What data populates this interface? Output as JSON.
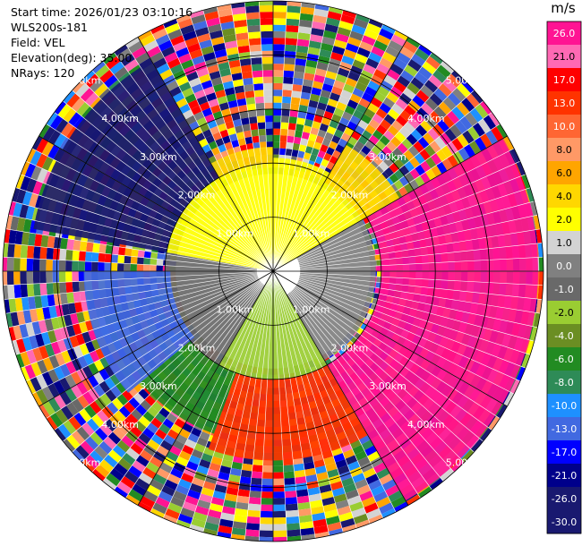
{
  "header": {
    "start_time": "Start time: 2026/01/23 03:10:16",
    "instrument": "WLS200s-181",
    "field": "Field: VEL",
    "elevation": "Elevation(deg): 35.00",
    "nrays": "NRays: 120"
  },
  "chart_data": {
    "type": "ppi",
    "title": "",
    "field": "VEL",
    "elevation_deg": 35.0,
    "n_rays": 120,
    "max_range_km": 5.0,
    "range_rings_km": [
      1,
      2,
      3,
      4,
      5
    ],
    "ring_labels": [
      "1.00km",
      "2.00km",
      "3.00km",
      "4.00km",
      "5.00km"
    ],
    "azimuth_spokes_deg": [
      0,
      30,
      60,
      90,
      120,
      150,
      180,
      210,
      240,
      270,
      300,
      330
    ],
    "colorbar": {
      "unit": "m/s",
      "levels": [
        "26.0",
        "21.0",
        "17.0",
        "13.0",
        "10.0",
        "8.0",
        "6.0",
        "4.0",
        "2.0",
        "1.0",
        "0.0",
        "-1.0",
        "-2.0",
        "-4.0",
        "-6.0",
        "-8.0",
        "-10.0",
        "-13.0",
        "-17.0",
        "-21.0",
        "-26.0",
        "-30.0"
      ],
      "colors": [
        "#ff1493",
        "#ff69b4",
        "#ff0000",
        "#ff3300",
        "#ff6633",
        "#ff9966",
        "#ffa500",
        "#ffd700",
        "#ffff00",
        "#d3d3d3",
        "#808080",
        "#696969",
        "#9acd32",
        "#6b8e23",
        "#228b22",
        "#2e8b57",
        "#1e90ff",
        "#4169e1",
        "#0000ff",
        "#00008b",
        "#191970",
        "#191970"
      ]
    },
    "sectors": [
      {
        "from_az": 0,
        "to_az": 60,
        "inner_km": 0,
        "outer_km": 2.1,
        "value": 2.0
      },
      {
        "from_az": 60,
        "to_az": 150,
        "inner_km": 0.5,
        "outer_km": 1.9,
        "value": 0.0
      },
      {
        "from_az": 150,
        "to_az": 210,
        "inner_km": 0,
        "outer_km": 2.0,
        "value": -2.0
      },
      {
        "from_az": 210,
        "to_az": 280,
        "inner_km": 0.3,
        "outer_km": 2.0,
        "value": -1.0
      },
      {
        "from_az": 280,
        "to_az": 360,
        "inner_km": 0,
        "outer_km": 2.0,
        "value": 2.0
      },
      {
        "from_az": 30,
        "to_az": 60,
        "inner_km": 1.9,
        "outer_km": 2.7,
        "value": 4.0
      },
      {
        "from_az": 60,
        "to_az": 150,
        "inner_km": 2.0,
        "outer_km": 4.9,
        "value": 26.0
      },
      {
        "from_az": 150,
        "to_az": 200,
        "inner_km": 2.0,
        "outer_km": 3.5,
        "value": 13.0
      },
      {
        "from_az": 200,
        "to_az": 230,
        "inner_km": 2.0,
        "outer_km": 3.2,
        "value": -6.0
      },
      {
        "from_az": 230,
        "to_az": 270,
        "inner_km": 1.9,
        "outer_km": 3.5,
        "value": -13.0
      },
      {
        "from_az": 280,
        "to_az": 330,
        "inner_km": 2.0,
        "outer_km": 4.5,
        "value": -26.0
      },
      {
        "from_az": 330,
        "to_az": 360,
        "inner_km": 2.0,
        "outer_km": 2.3,
        "value": 4.0
      }
    ]
  }
}
